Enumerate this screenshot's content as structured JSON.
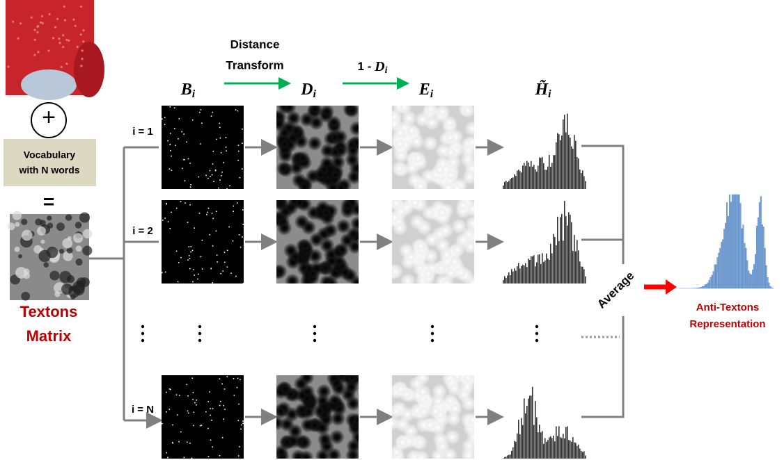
{
  "inputs": {
    "plus": "+",
    "vocabulary": [
      "Vocabulary",
      "with N words"
    ],
    "equals": "=",
    "textons": [
      "Textons",
      "Matrix"
    ]
  },
  "transform_step": [
    "Distance",
    "Transform"
  ],
  "invert_step": {
    "prefix": "1 - ",
    "base": "D",
    "sub": "i"
  },
  "headings": [
    {
      "base": "B",
      "sub": "i"
    },
    {
      "base": "D",
      "sub": "i"
    },
    {
      "base": "E",
      "sub": "i"
    },
    {
      "base": "H̃",
      "sub": "i"
    }
  ],
  "rows": [
    "i = 1",
    "i = 2",
    "i = N"
  ],
  "average": "Average",
  "output": [
    "Anti-Textons",
    "Representation"
  ]
}
